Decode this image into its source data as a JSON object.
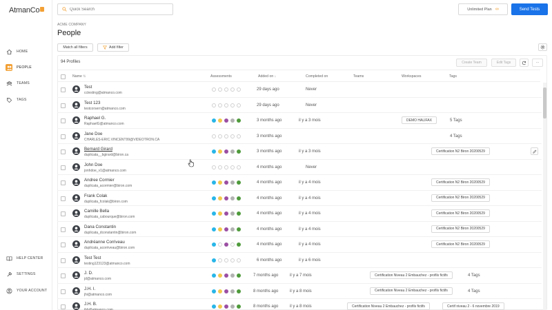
{
  "app": {
    "logo_text": "AtmanCo",
    "search_placeholder": "Quick Search",
    "plan_label": "Unlimited Plan",
    "plan_icon": "∞",
    "send_tests_label": "Send Tests"
  },
  "sidebar": {
    "items": [
      {
        "label": "HOME",
        "icon": "home-icon",
        "active": false
      },
      {
        "label": "PEOPLE",
        "icon": "people-icon",
        "active": true
      },
      {
        "label": "TEAMS",
        "icon": "teams-icon",
        "active": false
      },
      {
        "label": "TAGS",
        "icon": "tag-icon",
        "active": false
      }
    ],
    "bottom_items": [
      {
        "label": "HELP CENTER",
        "icon": "book-icon"
      },
      {
        "label": "SETTINGS",
        "icon": "wrench-icon"
      },
      {
        "label": "YOUR ACCOUNT",
        "icon": "account-icon"
      }
    ]
  },
  "page": {
    "company": "ACME COMPANY",
    "title": "People",
    "match_filters_label": "Match all filters",
    "add_filter_label": "Add filter",
    "profiles_count": "94 Profiles",
    "create_team_label": "Create Team",
    "edit_tags_label": "Edit Tags",
    "more_label": "···"
  },
  "colors": {
    "accent": "#f2a035",
    "primary": "#1a73e8",
    "dot_blue": "#29b6e8",
    "dot_yellow": "#f3c94e",
    "dot_purple": "#9c4fa3",
    "dot_gray": "#b3b3b3",
    "dot_green": "#4f9a3c"
  },
  "table": {
    "headers": {
      "name": "Name",
      "assessments": "Assessments",
      "added_on": "Added on",
      "completed_on": "Completed on",
      "teams": "Teams",
      "workspaces": "Workspaces",
      "tags": "Tags"
    },
    "rows": [
      {
        "name": "Test",
        "email": "cctesting@atmanco.com",
        "dots": [
          0,
          0,
          0,
          0,
          0
        ],
        "added": "29 days ago",
        "completed": "Never",
        "workspace": "",
        "tags": "",
        "tagcount": ""
      },
      {
        "name": "Test 123",
        "email": "testcorsern@atmanco.com",
        "dots": [
          0,
          0,
          0,
          0,
          0
        ],
        "added": "29 days ago",
        "completed": "Never",
        "workspace": "",
        "tags": "",
        "tagcount": ""
      },
      {
        "name": "Raphael G.",
        "email": "RaphaelG@atmanco.com",
        "dots": [
          1,
          1,
          1,
          1,
          1
        ],
        "added": "3 months ago",
        "completed": "il y a 3 mois",
        "workspace": "DEMO HALIFAX",
        "tags": "",
        "tagcount": "5 Tags"
      },
      {
        "name": "Jane Doe",
        "email": "CHARLES-ERIC.VINCENT99@VIDEOTRON.CA",
        "dots": [
          0,
          0,
          0,
          0,
          0
        ],
        "added": "3 months ago",
        "completed": "",
        "workspace": "",
        "tags": "",
        "tagcount": "4 Tags"
      },
      {
        "name": "Bernard Girard",
        "email": "duplicata__bgirard@biron.ca",
        "dots": [
          1,
          1,
          1,
          1,
          1
        ],
        "added": "3 months ago",
        "completed": "il y a 3 mois",
        "workspace": "",
        "tags": "Certification N2 Biron 20200529",
        "tagcount": ""
      },
      {
        "name": "John Doe",
        "email": "jonhdoe_v1@atmanco.com",
        "dots": [
          0,
          0,
          0,
          0,
          0
        ],
        "added": "4 months ago",
        "completed": "Never",
        "workspace": "",
        "tags": "",
        "tagcount": ""
      },
      {
        "name": "Andree Cormier",
        "email": "duplicata_acormier@biron.com",
        "dots": [
          1,
          1,
          1,
          1,
          1
        ],
        "added": "4 months ago",
        "completed": "il y a 4 mois",
        "workspace": "",
        "tags": "Certification N2 Biron 20200529",
        "tagcount": ""
      },
      {
        "name": "Frank Colak",
        "email": "duplicata_fcolak@biron.com",
        "dots": [
          1,
          1,
          1,
          1,
          1
        ],
        "added": "4 months ago",
        "completed": "il y a 4 mois",
        "workspace": "",
        "tags": "Certification N2 Biron 20200529",
        "tagcount": ""
      },
      {
        "name": "Camille Bella",
        "email": "duplicata_cabourque@biron.com",
        "dots": [
          1,
          1,
          1,
          1,
          1
        ],
        "added": "4 months ago",
        "completed": "il y a 4 mois",
        "workspace": "",
        "tags": "Certification N2 Biron 20200529",
        "tagcount": ""
      },
      {
        "name": "Dana Constantin",
        "email": "duplicata_dconstantin@biron.com",
        "dots": [
          1,
          1,
          1,
          1,
          1
        ],
        "added": "4 months ago",
        "completed": "il y a 4 mois",
        "workspace": "",
        "tags": "Certification N2 Biron 20200529",
        "tagcount": ""
      },
      {
        "name": "Andréanne Corriveau",
        "email": "duplicata_acorriveau@biron.com",
        "dots": [
          1,
          0,
          1,
          0,
          1
        ],
        "added": "4 months ago",
        "completed": "il y a 4 mois",
        "workspace": "",
        "tags": "Certification N2 Biron 20200529",
        "tagcount": ""
      },
      {
        "name": "Test Test",
        "email": "testing123123@atmanco.com",
        "dots": [
          1,
          0,
          0,
          0,
          0
        ],
        "added": "6 months ago",
        "completed": "il y a 6 mois",
        "workspace": "",
        "tags": "",
        "tagcount": ""
      },
      {
        "name": "J. D.",
        "email": "jd@atmanco.com",
        "dots": [
          1,
          1,
          1,
          1,
          1
        ],
        "added": "7 months ago",
        "completed": "il y a 7 mois",
        "workspace": "",
        "tags": "Certification Niveau 2 Embauchez - profils fictifs",
        "tagcount": "4 Tags"
      },
      {
        "name": "J.H. I.",
        "email": "jhi@atmanco.com",
        "dots": [
          1,
          1,
          1,
          1,
          1
        ],
        "added": "8 months ago",
        "completed": "il y a 8 mois",
        "workspace": "",
        "tags": "Certification Niveau 2 Embauchez - profils fictifs",
        "tagcount": "4 Tags"
      },
      {
        "name": "J.H. B.",
        "email": "jhb@atmanco.com",
        "dots": [
          1,
          1,
          1,
          1,
          1
        ],
        "added": "8 months ago",
        "completed": "il y a 8 mois",
        "workspace": "",
        "tags": "Certification Niveau 2 Embauchez - profils fictifs",
        "tagcount": "",
        "tag2": "Certif niveau 2 - 6 novembre 2019"
      }
    ]
  }
}
